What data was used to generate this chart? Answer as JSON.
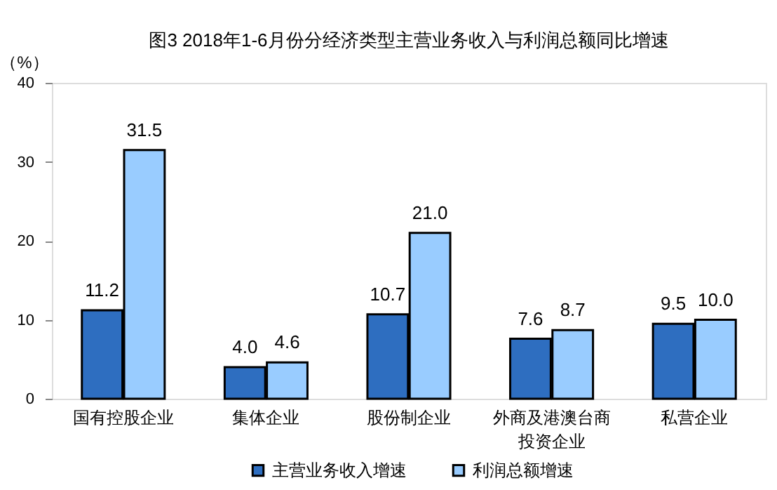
{
  "chart_data": {
    "type": "bar",
    "title": "图3 2018年1-6月份分经济类型主营业务收入与利润总额同比增速",
    "ylabel": "（%）",
    "categories": [
      "国有控股企业",
      "集体企业",
      "股份制企业",
      "外商及港澳台商投资企业",
      "私营企业"
    ],
    "series": [
      {
        "name": "主营业务收入增速",
        "color": "#2e6ec0",
        "values": [
          11.2,
          4.0,
          10.7,
          7.6,
          9.5
        ],
        "value_labels": [
          "11.2",
          "4.0",
          "10.7",
          "7.6",
          "9.5"
        ]
      },
      {
        "name": "利润总额增速",
        "color": "#99ccff",
        "values": [
          31.5,
          4.6,
          21.0,
          8.7,
          10.0
        ],
        "value_labels": [
          "31.5",
          "4.6",
          "21.0",
          "8.7",
          "10.0"
        ]
      }
    ],
    "ylim": [
      0,
      40
    ],
    "yticks": [
      0,
      10,
      20,
      30,
      40
    ],
    "grid": false,
    "legend": "bottom"
  }
}
